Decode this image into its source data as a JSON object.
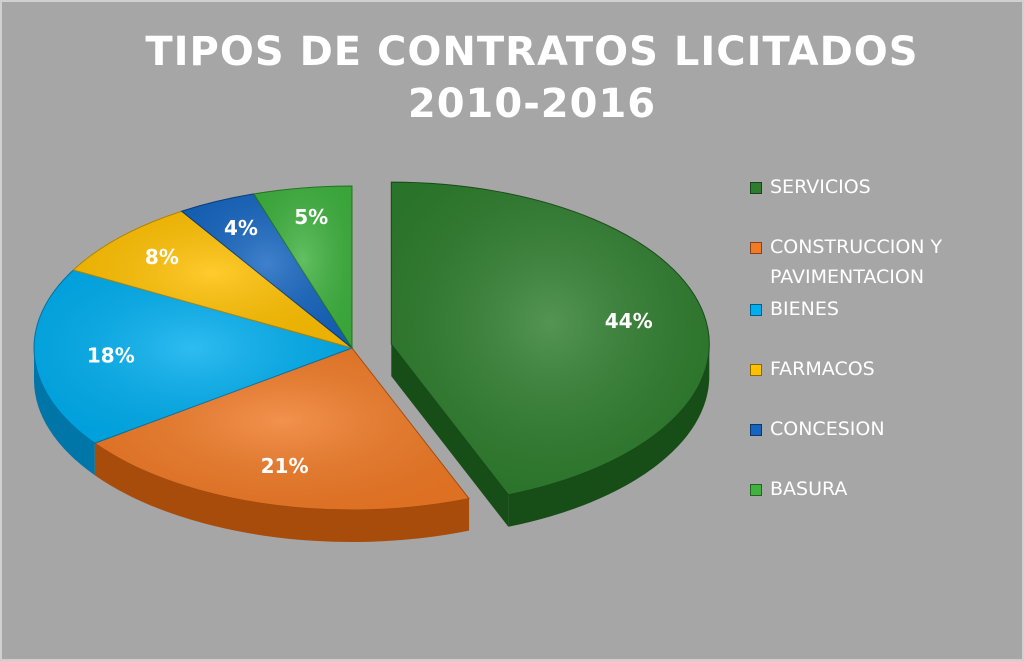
{
  "chart_data": {
    "type": "pie",
    "title_lines": [
      "TIPOS DE CONTRATOS LICITADOS",
      "2010-2016"
    ],
    "legend_position": "right",
    "slices": [
      {
        "name": "SERVICIOS",
        "value": 44,
        "label": "44%",
        "color": "#2e7d2e",
        "dark": "#174d17",
        "exploded": true
      },
      {
        "name": "CONSTRUCCION Y PAVIMENTACION",
        "value": 21,
        "label": "21%",
        "color": "#f07a26",
        "dark": "#a84c0c",
        "exploded": false
      },
      {
        "name": "BIENES",
        "value": 18,
        "label": "18%",
        "color": "#00aeef",
        "dark": "#0076a8",
        "exploded": false
      },
      {
        "name": "FARMACOS",
        "value": 8,
        "label": "8%",
        "color": "#ffc000",
        "dark": "#b38600",
        "exploded": false
      },
      {
        "name": "CONCESION",
        "value": 4,
        "label": "4%",
        "color": "#1565c0",
        "dark": "#0b3d78",
        "exploded": false
      },
      {
        "name": "BASURA",
        "value": 5,
        "label": "5%",
        "color": "#3fb23f",
        "dark": "#247624",
        "exploded": false
      }
    ]
  },
  "legend": {
    "items": [
      {
        "label_lines": [
          "SERVICIOS"
        ],
        "color": "#2e7d2e"
      },
      {
        "label_lines": [
          "CONSTRUCCION Y",
          "PAVIMENTACION"
        ],
        "color": "#f07a26"
      },
      {
        "label_lines": [
          "BIENES"
        ],
        "color": "#00aeef"
      },
      {
        "label_lines": [
          "FARMACOS"
        ],
        "color": "#ffc000"
      },
      {
        "label_lines": [
          "CONCESION"
        ],
        "color": "#1565c0"
      },
      {
        "label_lines": [
          "BASURA"
        ],
        "color": "#3fb23f"
      }
    ]
  }
}
